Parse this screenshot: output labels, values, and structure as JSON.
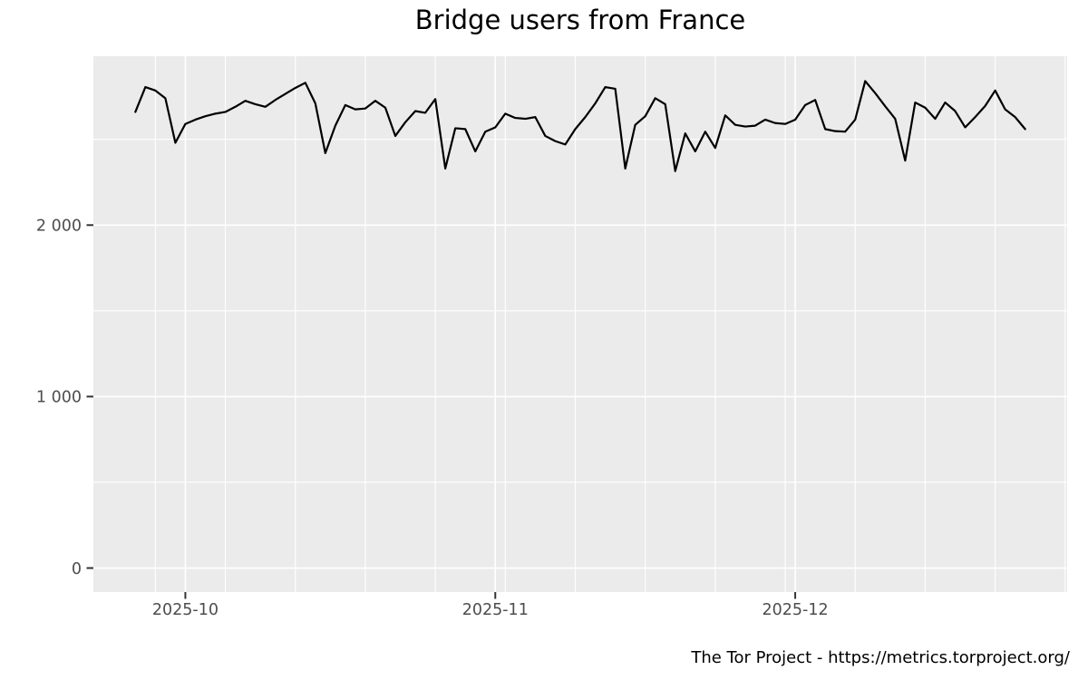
{
  "attribution": "The Tor Project - https://metrics.torproject.org/",
  "colors": {
    "panel_bg": "#EBEBEB",
    "grid": "#FFFFFF",
    "line": "#000000",
    "axis_text": "#4D4D4D",
    "tick_mark": "#333333",
    "title_text": "#000000"
  },
  "chart_data": {
    "type": "line",
    "title": "Bridge users from France",
    "xlabel": "",
    "ylabel": "",
    "grid": true,
    "legend": false,
    "ylim": [
      -140,
      2985
    ],
    "x_pad_days": 4.2,
    "y_ticks": [
      {
        "value": 0,
        "label": "0"
      },
      {
        "value": 1000,
        "label": "1 000"
      },
      {
        "value": 2000,
        "label": "2 000"
      }
    ],
    "y_minor": [
      500,
      1500,
      2500
    ],
    "x_ticks": [
      {
        "date": "2025-10-01",
        "label": "2025-10"
      },
      {
        "date": "2025-11-01",
        "label": "2025-11"
      },
      {
        "date": "2025-12-01",
        "label": "2025-12"
      }
    ],
    "x_minor_rule": "weekly-sundays",
    "x": [
      "2025-09-26",
      "2025-09-27",
      "2025-09-28",
      "2025-09-29",
      "2025-09-30",
      "2025-10-01",
      "2025-10-02",
      "2025-10-03",
      "2025-10-04",
      "2025-10-05",
      "2025-10-06",
      "2025-10-07",
      "2025-10-08",
      "2025-10-09",
      "2025-10-10",
      "2025-10-11",
      "2025-10-12",
      "2025-10-13",
      "2025-10-14",
      "2025-10-15",
      "2025-10-16",
      "2025-10-17",
      "2025-10-18",
      "2025-10-19",
      "2025-10-20",
      "2025-10-21",
      "2025-10-22",
      "2025-10-23",
      "2025-10-24",
      "2025-10-25",
      "2025-10-26",
      "2025-10-27",
      "2025-10-28",
      "2025-10-29",
      "2025-10-30",
      "2025-10-31",
      "2025-11-01",
      "2025-11-02",
      "2025-11-03",
      "2025-11-04",
      "2025-11-05",
      "2025-11-06",
      "2025-11-07",
      "2025-11-08",
      "2025-11-09",
      "2025-11-10",
      "2025-11-11",
      "2025-11-12",
      "2025-11-13",
      "2025-11-14",
      "2025-11-15",
      "2025-11-16",
      "2025-11-17",
      "2025-11-18",
      "2025-11-19",
      "2025-11-20",
      "2025-11-21",
      "2025-11-22",
      "2025-11-23",
      "2025-11-24",
      "2025-11-25",
      "2025-11-26",
      "2025-11-27",
      "2025-11-28",
      "2025-11-29",
      "2025-11-30",
      "2025-12-01",
      "2025-12-02",
      "2025-12-03",
      "2025-12-04",
      "2025-12-05",
      "2025-12-06",
      "2025-12-07",
      "2025-12-08",
      "2025-12-09",
      "2025-12-10",
      "2025-12-11",
      "2025-12-12",
      "2025-12-13",
      "2025-12-14",
      "2025-12-15",
      "2025-12-16",
      "2025-12-17",
      "2025-12-18",
      "2025-12-19",
      "2025-12-20",
      "2025-12-21",
      "2025-12-22",
      "2025-12-23",
      "2025-12-24"
    ],
    "values": [
      2660,
      2805,
      2785,
      2740,
      2480,
      2590,
      2615,
      2635,
      2650,
      2660,
      2690,
      2725,
      2705,
      2690,
      2730,
      2765,
      2800,
      2830,
      2710,
      2420,
      2580,
      2700,
      2675,
      2680,
      2725,
      2685,
      2520,
      2600,
      2665,
      2655,
      2735,
      2330,
      2565,
      2560,
      2430,
      2545,
      2570,
      2650,
      2625,
      2620,
      2630,
      2520,
      2490,
      2470,
      2560,
      2630,
      2710,
      2805,
      2795,
      2330,
      2585,
      2635,
      2740,
      2705,
      2315,
      2535,
      2430,
      2545,
      2450,
      2640,
      2585,
      2575,
      2580,
      2615,
      2595,
      2590,
      2615,
      2700,
      2730,
      2560,
      2548,
      2545,
      2615,
      2840,
      2770,
      2693,
      2620,
      2376,
      2715,
      2685,
      2620,
      2715,
      2665,
      2570,
      2630,
      2695,
      2785,
      2675,
      2630,
      2560
    ]
  }
}
